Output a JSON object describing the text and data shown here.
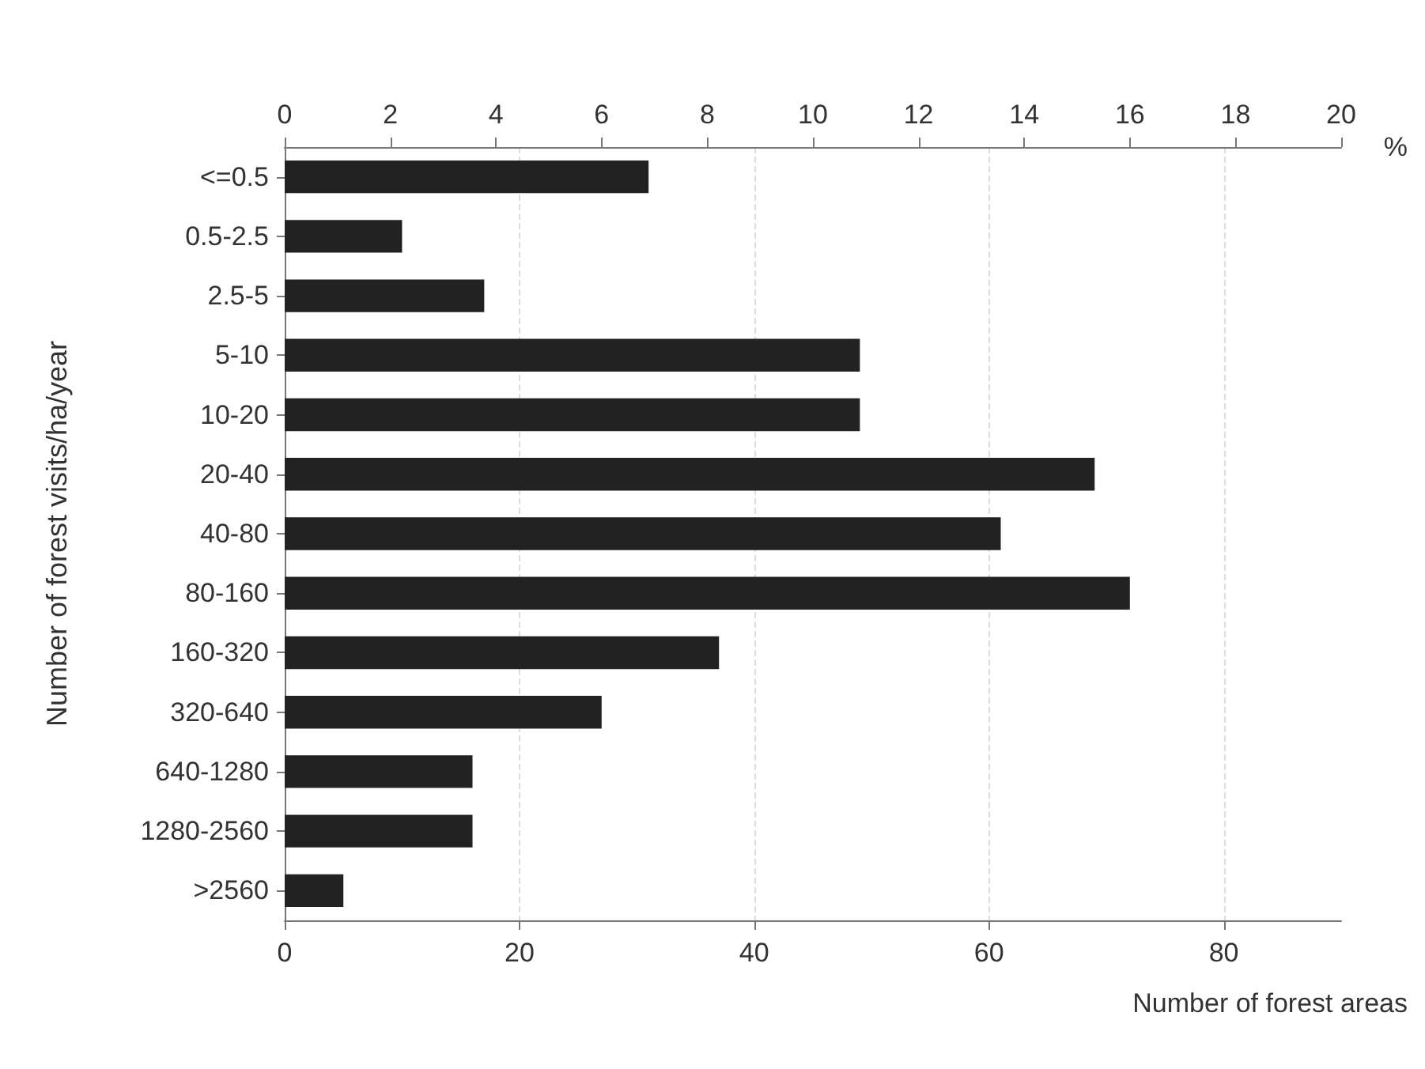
{
  "chart_data": {
    "type": "bar",
    "orientation": "horizontal",
    "categories": [
      "<=0.5",
      "0.5-2.5",
      "2.5-5",
      "5-10",
      "10-20",
      "20-40",
      "40-80",
      "80-160",
      "160-320",
      "320-640",
      "640-1280",
      "1280-2560",
      ">2560"
    ],
    "values": [
      31,
      10,
      17,
      49,
      49,
      69,
      61,
      72,
      37,
      27,
      16,
      16,
      5
    ],
    "color": "#222222",
    "xlabel": "Number of forest areas",
    "ylabel": "Number of forest visits/ha/year",
    "x2label": "%",
    "xlim": [
      0,
      90
    ],
    "xticks": [
      0,
      20,
      40,
      60,
      80
    ],
    "x2lim": [
      0,
      20
    ],
    "x2ticks": [
      0,
      2,
      4,
      6,
      8,
      10,
      12,
      14,
      16,
      18,
      20
    ],
    "grid": "x"
  }
}
